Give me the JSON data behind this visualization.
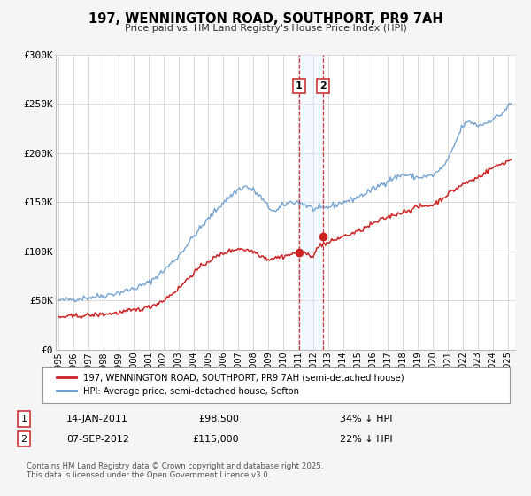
{
  "title": "197, WENNINGTON ROAD, SOUTHPORT, PR9 7AH",
  "subtitle": "Price paid vs. HM Land Registry's House Price Index (HPI)",
  "legend_line1": "197, WENNINGTON ROAD, SOUTHPORT, PR9 7AH (semi-detached house)",
  "legend_line2": "HPI: Average price, semi-detached house, Sefton",
  "footer": "Contains HM Land Registry data © Crown copyright and database right 2025.\nThis data is licensed under the Open Government Licence v3.0.",
  "sale1_label": "1",
  "sale1_date": "14-JAN-2011",
  "sale1_price": "£98,500",
  "sale1_hpi": "34% ↓ HPI",
  "sale1_x": 2011.04,
  "sale1_y": 98500,
  "sale2_label": "2",
  "sale2_date": "07-SEP-2012",
  "sale2_price": "£115,000",
  "sale2_hpi": "22% ↓ HPI",
  "sale2_x": 2012.69,
  "sale2_y": 115000,
  "hpi_color": "#6699cc",
  "price_color": "#cc2222",
  "shade_color": "#ddeeff",
  "ylim": [
    0,
    300000
  ],
  "xlim_start": 1994.8,
  "xlim_end": 2025.5,
  "yticks": [
    0,
    50000,
    100000,
    150000,
    200000,
    250000,
    300000
  ],
  "ytick_labels": [
    "£0",
    "£50K",
    "£100K",
    "£150K",
    "£200K",
    "£250K",
    "£300K"
  ],
  "xticks": [
    1995,
    1996,
    1997,
    1998,
    1999,
    2000,
    2001,
    2002,
    2003,
    2004,
    2005,
    2006,
    2007,
    2008,
    2009,
    2010,
    2011,
    2012,
    2013,
    2014,
    2015,
    2016,
    2017,
    2018,
    2019,
    2020,
    2021,
    2022,
    2023,
    2024,
    2025
  ],
  "background_color": "#f5f5f5",
  "plot_bg": "#ffffff",
  "grid_color": "#cccccc",
  "label_box_color": "#cc3333"
}
